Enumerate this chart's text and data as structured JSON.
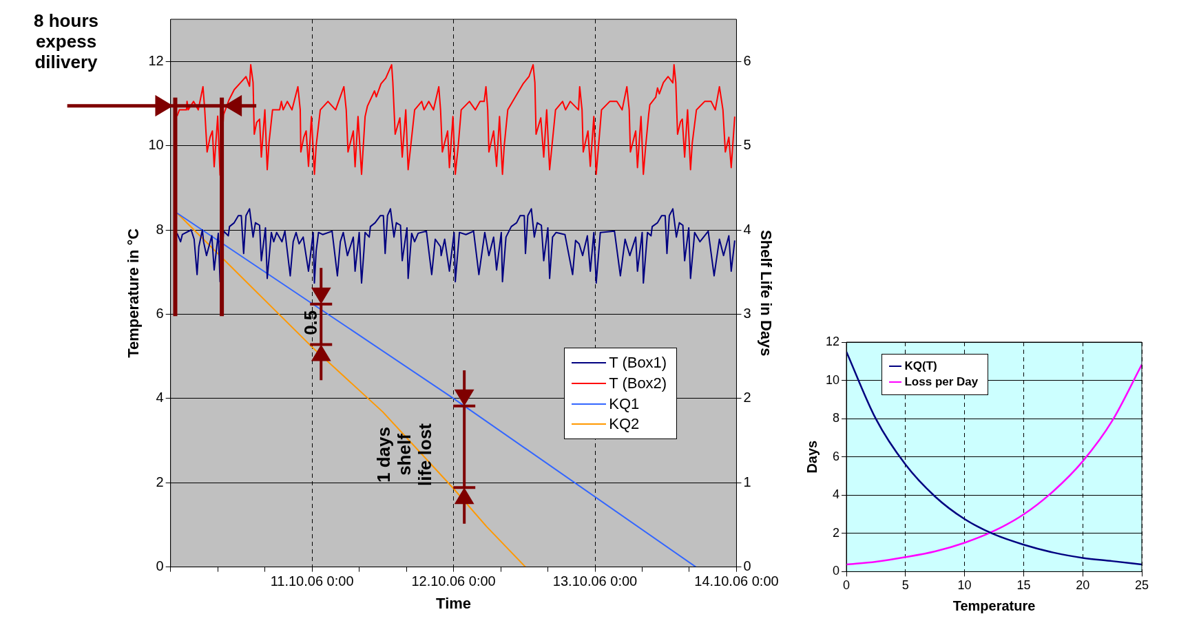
{
  "chart_data": [
    {
      "type": "line",
      "xlabel": "Time",
      "ylabel": "Temperature in °C",
      "y2label": "Shelf Life in Days",
      "xlim": [
        "--10-10T00:00",
        "--10-14T00:00"
      ],
      "xticks": [
        {
          "value": "--10-10T00:00",
          "label": null
        },
        {
          "value": "--10-10T08:00",
          "label": null
        },
        {
          "value": "--10-10T16:00",
          "label": null
        },
        {
          "value": "--10-11T00:00",
          "label": "11.10.06 0:00"
        },
        {
          "value": "--10-11T08:00",
          "label": null
        },
        {
          "value": "--10-11T16:00",
          "label": null
        },
        {
          "value": "--10-12T00:00",
          "label": "12.10.06 0:00"
        },
        {
          "value": "--10-12T08:00",
          "label": null
        },
        {
          "value": "--10-12T16:00",
          "label": null
        },
        {
          "value": "--10-13T00:00",
          "label": "13.10.06 0:00"
        },
        {
          "value": "--10-13T08:00",
          "label": null
        },
        {
          "value": "--10-13T16:00",
          "label": null
        },
        {
          "value": "--10-14T00:00",
          "label": "14.10.06 0:00"
        }
      ],
      "ylim": [
        0,
        13
      ],
      "yticks": [
        0,
        2,
        4,
        6,
        8,
        10,
        12
      ],
      "y2lim": [
        0,
        6.5
      ],
      "y2ticks": [
        0,
        1,
        2,
        3,
        4,
        5,
        6
      ],
      "grid": true,
      "legend": "right",
      "marker": "none",
      "annotations": [
        "8 hours expess dilivery",
        "0.5",
        "1 days shelf life lost"
      ],
      "series": [
        {
          "name": "T (Box1)",
          "color": "#000080",
          "x": [
            "--10-10T01:06",
            "--10-10T01:42",
            "--10-10T02:00",
            "--10-10T03:30",
            "--10-10T04:00",
            "--10-10T04:30",
            "--10-10T04:48",
            "--10-10T05:24",
            "--10-10T05:36",
            "--10-10T06:06",
            "--10-10T07:00",
            "--10-10T07:24",
            "--10-10T08:06",
            "--10-10T08:24",
            "--10-10T09:00",
            "--10-10T09:48",
            "--10-10T10:00",
            "--10-10T10:48",
            "--10-10T11:30",
            "--10-10T12:00",
            "--10-10T12:24",
            "--10-10T12:48",
            "--10-10T13:24",
            "--10-10T14:00",
            "--10-10T14:24",
            "--10-10T15:06",
            "--10-10T15:24",
            "--10-10T16:06",
            "--10-10T16:24",
            "--10-10T17:06",
            "--10-10T17:30",
            "--10-10T18:00",
            "--10-10T18:54",
            "--10-10T19:24",
            "--10-10T20:18",
            "--10-10T20:48",
            "--10-10T21:18",
            "--10-10T21:48",
            "--10-10T22:30",
            "--10-10T23:24",
            "--10-11T00:12",
            "--10-11T00:24",
            "--10-11T00:42",
            "--10-11T01:06",
            "--10-11T01:48",
            "--10-11T03:24",
            "--10-11T04:18",
            "--10-11T04:48",
            "--10-11T05:18",
            "--10-11T06:00",
            "--10-11T07:00",
            "--10-11T07:18",
            "--10-11T08:00",
            "--10-11T08:24",
            "--10-11T08:48",
            "--10-11T09:00",
            "--10-11T09:42",
            "--10-11T09:54",
            "--10-11T10:42",
            "--10-11T11:36",
            "--10-11T12:06",
            "--10-11T12:24",
            "--10-11T12:48",
            "--10-11T13:18",
            "--10-11T13:54",
            "--10-11T14:18",
            "--10-11T15:00",
            "--10-11T15:18",
            "--10-11T16:06",
            "--10-11T16:18",
            "--10-11T16:54",
            "--10-11T17:24",
            "--10-11T18:00",
            "--10-11T19:24",
            "--10-11T20:18",
            "--10-11T20:54",
            "--10-11T21:48",
            "--10-11T21:54",
            "--10-11T22:30",
            "--10-11T23:18",
            "--10-12T00:06",
            "--10-12T00:18",
            "--10-12T01:00",
            "--10-12T02:06",
            "--10-12T03:24",
            "--10-12T04:18",
            "--10-12T05:18",
            "--10-12T06:00",
            "--10-12T06:48",
            "--10-12T07:18",
            "--10-12T08:06",
            "--10-12T08:18",
            "--10-12T08:54",
            "--10-12T09:48",
            "--10-12T10:42",
            "--10-12T11:18",
            "--10-12T12:00",
            "--10-12T12:12",
            "--10-12T12:36",
            "--10-12T13:12",
            "--10-12T13:42",
            "--10-12T14:12",
            "--10-12T14:54",
            "--10-12T15:18",
            "--10-12T16:00",
            "--10-12T16:18",
            "--10-12T16:48",
            "--10-12T17:24",
            "--10-12T18:54",
            "--10-12T20:12",
            "--10-12T20:42",
            "--10-12T21:18",
            "--10-12T21:54",
            "--10-12T22:42",
            "--10-12T23:12",
            "--10-12T23:48",
            "--10-13T00:12",
            "--10-13T00:54",
            "--10-13T03:18",
            "--10-13T04:18",
            "--10-13T05:06",
            "--10-13T05:54",
            "--10-13T06:54",
            "--10-13T07:12",
            "--10-13T08:00",
            "--10-13T08:12",
            "--10-13T08:54",
            "--10-13T09:30",
            "--10-13T09:42",
            "--10-13T10:36",
            "--10-13T11:18",
            "--10-13T11:54",
            "--10-13T12:12",
            "--10-13T12:36",
            "--10-13T13:12",
            "--10-13T13:48",
            "--10-13T14:18",
            "--10-13T14:54",
            "--10-13T15:12",
            "--10-13T15:54",
            "--10-13T16:12",
            "--10-13T16:54",
            "--10-13T17:48",
            "--10-13T19:12",
            "--10-13T20:12",
            "--10-13T21:06",
            "--10-13T21:48",
            "--10-13T22:42",
            "--10-13T23:06",
            "--10-13T23:42"
          ],
          "values": [
            7.92,
            7.72,
            7.89,
            8.0,
            7.78,
            6.94,
            7.6,
            8.0,
            7.72,
            7.39,
            7.86,
            7.05,
            7.92,
            6.77,
            7.97,
            7.86,
            8.08,
            8.17,
            8.34,
            8.34,
            7.44,
            8.34,
            8.5,
            7.83,
            8.17,
            8.11,
            7.27,
            8.05,
            6.85,
            7.94,
            7.72,
            7.94,
            7.72,
            7.97,
            6.91,
            7.72,
            7.94,
            7.67,
            7.83,
            7.02,
            7.94,
            6.74,
            7.5,
            7.94,
            7.89,
            7.97,
            6.91,
            7.72,
            7.94,
            7.39,
            7.83,
            7.02,
            7.94,
            6.74,
            7.5,
            7.94,
            7.83,
            8.08,
            8.17,
            8.34,
            8.34,
            7.44,
            8.34,
            8.5,
            7.83,
            8.17,
            8.11,
            7.27,
            8.05,
            6.85,
            7.92,
            7.72,
            7.92,
            7.97,
            6.94,
            7.78,
            7.6,
            7.39,
            7.78,
            7.02,
            7.94,
            6.77,
            7.94,
            7.89,
            7.97,
            6.94,
            7.94,
            7.39,
            7.83,
            7.05,
            7.94,
            6.77,
            7.83,
            8.08,
            8.17,
            8.34,
            8.34,
            7.44,
            8.34,
            8.5,
            7.83,
            8.17,
            8.11,
            7.27,
            8.05,
            6.85,
            7.83,
            7.94,
            7.89,
            6.94,
            7.75,
            7.67,
            7.39,
            7.86,
            7.02,
            7.94,
            6.74,
            7.94,
            7.97,
            6.91,
            7.78,
            7.39,
            7.83,
            7.02,
            7.94,
            6.74,
            7.94,
            7.86,
            8.08,
            8.17,
            8.34,
            8.34,
            7.44,
            8.34,
            8.5,
            7.83,
            8.17,
            8.11,
            7.27,
            8.05,
            6.85,
            7.94,
            7.72,
            7.97,
            6.91,
            7.78,
            7.39,
            7.86,
            7.02,
            7.75
          ]
        },
        {
          "name": "T (Box2)",
          "color": "#ff0000",
          "x": [
            "--10-10T01:06",
            "--10-10T01:30",
            "--10-10T02:42",
            "--10-10T02:48",
            "--10-10T03:00",
            "--10-10T03:54",
            "--10-10T04:42",
            "--10-10T05:30",
            "--10-10T05:48",
            "--10-10T06:12",
            "--10-10T06:42",
            "--10-10T07:06",
            "--10-10T07:24",
            "--10-10T08:00",
            "--10-10T08:24",
            "--10-10T09:00",
            "--10-10T09:54",
            "--10-10T10:48",
            "--10-10T11:54",
            "--10-10T12:48",
            "--10-10T13:24",
            "--10-10T13:36",
            "--10-10T14:00",
            "--10-10T14:12",
            "--10-10T14:36",
            "--10-10T15:06",
            "--10-10T15:24",
            "--10-10T16:00",
            "--10-10T16:24",
            "--10-10T16:42",
            "--10-10T17:18",
            "--10-10T18:30",
            "--10-10T18:48",
            "--10-10T19:06",
            "--10-10T19:48",
            "--10-10T20:36",
            "--10-10T21:36",
            "--10-10T22:00",
            "--10-10T22:06",
            "--10-10T22:36",
            "--10-10T23:00",
            "--10-10T23:24",
            "--10-10T23:54",
            "--10-11T00:24",
            "--10-11T00:42",
            "--10-11T01:24",
            "--10-11T02:42",
            "--10-11T04:00",
            "--10-11T05:24",
            "--10-11T05:48",
            "--10-11T06:06",
            "--10-11T07:00",
            "--10-11T07:18",
            "--10-11T07:48",
            "--10-11T08:24",
            "--10-11T09:00",
            "--10-11T09:24",
            "--10-11T10:36",
            "--10-11T10:54",
            "--10-11T11:42",
            "--10-11T12:30",
            "--10-11T13:30",
            "--10-11T13:42",
            "--10-11T14:06",
            "--10-11T14:54",
            "--10-11T15:18",
            "--10-11T15:54",
            "--10-11T16:18",
            "--10-11T16:48",
            "--10-11T17:24",
            "--10-11T18:36",
            "--10-11T19:00",
            "--10-11T19:48",
            "--10-11T20:36",
            "--10-11T21:30",
            "--10-11T21:48",
            "--10-11T22:06",
            "--10-11T23:00",
            "--10-11T23:18",
            "--10-11T23:54",
            "--10-12T00:18",
            "--10-12T00:48",
            "--10-12T01:18",
            "--10-12T02:42",
            "--10-12T03:42",
            "--10-12T04:30",
            "--10-12T05:12",
            "--10-12T05:30",
            "--10-12T05:48",
            "--10-12T06:00",
            "--10-12T06:48",
            "--10-12T07:18",
            "--10-12T07:48",
            "--10-12T08:18",
            "--10-12T08:36",
            "--10-12T09:12",
            "--10-12T10:30",
            "--10-12T11:48",
            "--10-12T12:48",
            "--10-12T13:30",
            "--10-12T13:48",
            "--10-12T14:00",
            "--10-12T14:48",
            "--10-12T15:18",
            "--10-12T15:48",
            "--10-12T16:18",
            "--10-12T16:42",
            "--10-12T17:18",
            "--10-12T18:30",
            "--10-12T19:00",
            "--10-12T19:48",
            "--10-12T21:12",
            "--10-12T21:24",
            "--10-12T21:48",
            "--10-12T22:00",
            "--10-12T22:48",
            "--10-12T23:12",
            "--10-12T23:48",
            "--10-13T00:12",
            "--10-13T00:36",
            "--10-13T01:06",
            "--10-13T02:30",
            "--10-13T03:42",
            "--10-13T04:36",
            "--10-13T05:24",
            "--10-13T05:48",
            "--10-13T06:00",
            "--10-13T06:54",
            "--10-13T07:12",
            "--10-13T07:48",
            "--10-13T08:12",
            "--10-13T08:36",
            "--10-13T09:06",
            "--10-13T09:18",
            "--10-13T10:18",
            "--10-13T10:36",
            "--10-13T10:54",
            "--10-13T11:36",
            "--10-13T12:24",
            "--10-13T13:12",
            "--10-13T13:24",
            "--10-13T13:42",
            "--10-13T14:00",
            "--10-13T14:30",
            "--10-13T14:48",
            "--10-13T15:12",
            "--10-13T15:42",
            "--10-13T16:12",
            "--10-13T16:30",
            "--10-13T17:12",
            "--10-13T18:36",
            "--10-13T19:42",
            "--10-13T20:24",
            "--10-13T21:06",
            "--10-13T21:42",
            "--10-13T22:06",
            "--10-13T22:42",
            "--10-13T23:06",
            "--10-13T23:42"
          ],
          "values": [
            10.7,
            10.85,
            10.85,
            11.05,
            10.85,
            11.05,
            10.85,
            11.4,
            10.85,
            9.85,
            10.2,
            10.35,
            9.5,
            10.7,
            9.3,
            10.74,
            11.08,
            11.33,
            11.5,
            11.64,
            11.41,
            11.92,
            11.5,
            10.27,
            10.55,
            10.63,
            9.73,
            10.85,
            9.43,
            10.07,
            10.85,
            10.85,
            11.05,
            10.85,
            11.05,
            10.85,
            11.4,
            10.85,
            9.85,
            10.2,
            10.35,
            9.51,
            10.69,
            9.32,
            10.0,
            10.85,
            11.05,
            10.85,
            11.4,
            10.85,
            9.85,
            10.35,
            9.5,
            10.69,
            9.32,
            10.69,
            10.94,
            11.3,
            11.16,
            11.47,
            11.6,
            11.92,
            11.52,
            10.27,
            10.66,
            9.73,
            10.85,
            9.43,
            10.07,
            10.85,
            11.05,
            10.85,
            11.05,
            10.85,
            11.4,
            10.85,
            9.85,
            10.35,
            9.48,
            10.69,
            9.32,
            10.0,
            10.85,
            11.05,
            10.85,
            11.05,
            11.05,
            11.4,
            10.85,
            9.85,
            10.35,
            9.51,
            10.69,
            9.32,
            10.0,
            10.85,
            11.16,
            11.47,
            11.64,
            11.92,
            11.5,
            10.27,
            10.66,
            9.73,
            10.85,
            9.43,
            10.0,
            10.85,
            11.05,
            10.85,
            11.05,
            10.85,
            11.4,
            10.85,
            9.85,
            10.35,
            9.51,
            10.69,
            9.32,
            10.0,
            10.85,
            11.05,
            11.05,
            10.85,
            11.4,
            10.85,
            9.85,
            10.35,
            9.48,
            10.69,
            9.32,
            10.0,
            10.74,
            10.97,
            11.15,
            11.37,
            11.23,
            11.5,
            11.64,
            11.49,
            11.92,
            11.5,
            10.27,
            10.57,
            10.63,
            9.73,
            10.85,
            9.43,
            10.07,
            10.85,
            11.05,
            11.05,
            10.85,
            11.4,
            10.85,
            9.85,
            10.2,
            9.48,
            10.69
          ]
        },
        {
          "name": "KQ1",
          "color": "#3366ff",
          "axis": "y2",
          "x": [
            "--10-10T01:06",
            "--10-12T00:00",
            "--10-13T17:06"
          ],
          "values": [
            4.2,
            2.0,
            0
          ]
        },
        {
          "name": "KQ2",
          "color": "#ff9900",
          "axis": "y2",
          "x": [
            "--10-10T01:06",
            "--10-10T08:36",
            "--10-11T00:00",
            "--10-11T12:00",
            "--10-12T00:00",
            "--10-12T05:36",
            "--10-12T12:12"
          ],
          "values": [
            4.2,
            3.68,
            2.61,
            1.84,
            0.93,
            0.48,
            0
          ]
        }
      ]
    },
    {
      "type": "line",
      "xlabel": "Temperature",
      "ylabel": "Days",
      "x": [
        0,
        2.5,
        5,
        7.5,
        10,
        12.5,
        15,
        17.5,
        20,
        22.5,
        25
      ],
      "xlim": [
        0,
        25
      ],
      "xticks": [
        0,
        5,
        10,
        15,
        20,
        25
      ],
      "ylim": [
        0,
        12
      ],
      "yticks": [
        0,
        2,
        4,
        6,
        8,
        10,
        12
      ],
      "grid": true,
      "legend": "top left",
      "marker": "none",
      "series": [
        {
          "name": "KQ(T)",
          "color": "#000080",
          "values": [
            11.5,
            7.98,
            5.6,
            3.93,
            2.75,
            1.95,
            1.41,
            1.0,
            0.72,
            0.55,
            0.37
          ]
        },
        {
          "name": "Loss per Day",
          "color": "#ff00ff",
          "values": [
            0.37,
            0.52,
            0.76,
            1.06,
            1.51,
            2.13,
            2.99,
            4.2,
            5.77,
            7.89,
            10.83
          ]
        }
      ]
    }
  ]
}
